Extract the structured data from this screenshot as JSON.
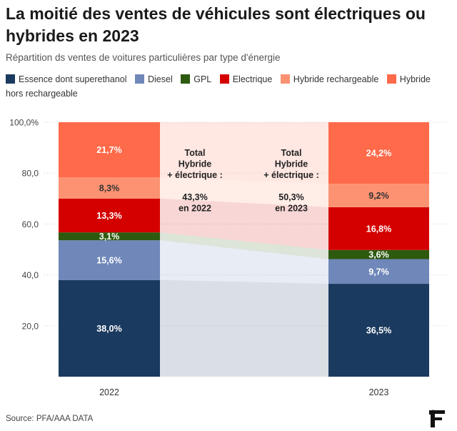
{
  "title": "La moitié des ventes de véhicules sont électriques ou hybrides en 2023",
  "subtitle": "Répartition ds ventes de voitures particulières par type d'énergie",
  "source": "Source: PFA/AAA DATA",
  "logo_icon": "le-figaro-logo",
  "chart_data": {
    "type": "bar",
    "stacked": true,
    "categories": [
      "2022",
      "2023"
    ],
    "ylim": [
      0,
      100
    ],
    "yticks": [
      "20,0",
      "40,0",
      "60,0",
      "80,0",
      "100,0%"
    ],
    "ytick_values": [
      20,
      40,
      60,
      80,
      100
    ],
    "grid": true,
    "legend_position": "top",
    "series": [
      {
        "name": "Essence dont superethanol",
        "color": "#1b3a5f",
        "values": [
          38.0,
          36.5
        ],
        "labels": [
          "38,0%",
          "36,5%"
        ],
        "label_color": "#ffffff"
      },
      {
        "name": "Diesel",
        "color": "#6f87b9",
        "values": [
          15.6,
          9.7
        ],
        "labels": [
          "15,6%",
          "9,7%"
        ],
        "label_color": "#ffffff"
      },
      {
        "name": "GPL",
        "color": "#2d5a0e",
        "values": [
          3.1,
          3.6
        ],
        "labels": [
          "3,1%",
          "3,6%"
        ],
        "label_color": "#ffffff"
      },
      {
        "name": "Electrique",
        "color": "#d40000",
        "values": [
          13.3,
          16.8
        ],
        "labels": [
          "13,3%",
          "16,8%"
        ],
        "label_color": "#ffffff"
      },
      {
        "name": "Hybride rechargeable",
        "color": "#fc9272",
        "values": [
          8.3,
          9.2
        ],
        "labels": [
          "8,3%",
          "9,2%"
        ],
        "label_color": "#333333"
      },
      {
        "name": "Hybride hors rechargeable",
        "color": "#ff6a4a",
        "values": [
          21.7,
          24.2
        ],
        "labels": [
          "21,7%",
          "24,2%"
        ],
        "label_color": "#ffffff"
      }
    ],
    "annotations": [
      {
        "lines": [
          "Total",
          "Hybride",
          "+ électrique :",
          "",
          "43,3%",
          "en 2022"
        ]
      },
      {
        "lines": [
          "Total",
          "Hybride",
          "+ électrique :",
          "",
          "50,3%",
          "en 2023"
        ]
      }
    ]
  }
}
